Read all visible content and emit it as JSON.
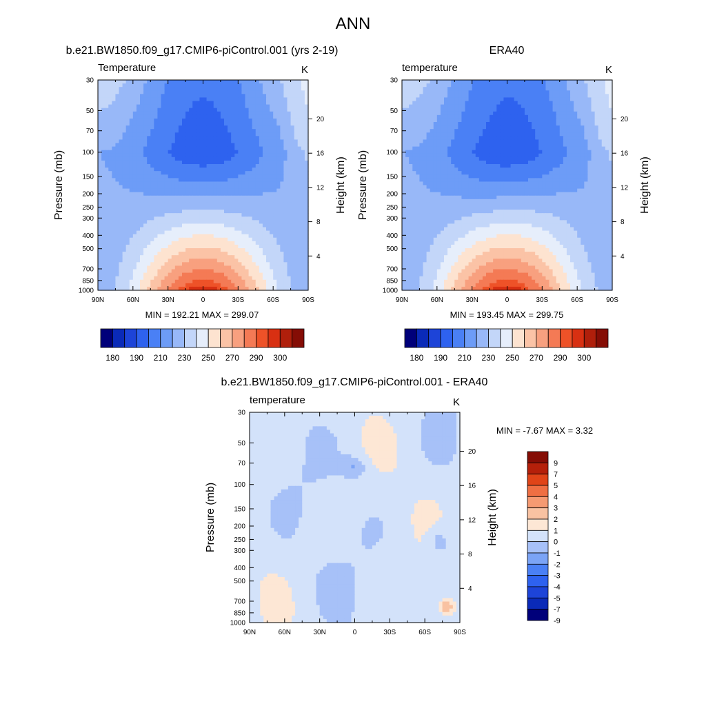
{
  "page": {
    "title": "ANN"
  },
  "colors": {
    "abs_levels": [
      "#00007a",
      "#0a2ab8",
      "#1d44d8",
      "#2e62ef",
      "#4a80f5",
      "#6d9cf7",
      "#98b8f8",
      "#c3d6f9",
      "#e6eefb",
      "#fde3d0",
      "#fbc3a6",
      "#f8a07f",
      "#f47a55",
      "#ee5228",
      "#d83012",
      "#b01f0b",
      "#850d05"
    ],
    "diff_levels": [
      "#00007a",
      "#0a2ab8",
      "#1d44d8",
      "#2e62ef",
      "#4a80f5",
      "#7ba4f6",
      "#a7c1f8",
      "#d3e2fa",
      "#fde7d5",
      "#f9c2a2",
      "#f59a72",
      "#ef6f43",
      "#e04418",
      "#b5200a",
      "#850d05"
    ]
  },
  "panels": {
    "model": {
      "heading": "b.e21.BW1850.f09_g17.CMIP6-piControl.001 (yrs 2-19)",
      "label_left": "Temperature",
      "label_right": "K",
      "stats": "MIN = 192.21  MAX = 299.07",
      "colorbar_ticks": [
        "180",
        "190",
        "210",
        "230",
        "250",
        "270",
        "290",
        "300"
      ]
    },
    "era40": {
      "heading": "ERA40",
      "label_left": "temperature",
      "label_right": "K",
      "stats": "MIN = 193.45  MAX = 299.75",
      "colorbar_ticks": [
        "180",
        "190",
        "210",
        "230",
        "250",
        "270",
        "290",
        "300"
      ]
    },
    "diff": {
      "heading": "b.e21.BW1850.f09_g17.CMIP6-piControl.001 - ERA40",
      "label_left": "temperature",
      "label_right": "K",
      "stats": "MIN =  -7.67  MAX =   3.32",
      "colorbar_ticks": [
        "9",
        "7",
        "5",
        "4",
        "3",
        "2",
        "1",
        "0",
        "-1",
        "-2",
        "-3",
        "-4",
        "-5",
        "-7",
        "-9"
      ]
    }
  },
  "chart_data": [
    {
      "type": "heatmap",
      "title": "b.e21.BW1850.f09_g17.CMIP6-piControl.001 (yrs 2-19)",
      "variable": "Temperature",
      "units": "K",
      "xlabel": "",
      "ylabel": "Pressure (mb)",
      "y2label": "Height (km)",
      "x_ticks": [
        "90N",
        "60N",
        "30N",
        "0",
        "30S",
        "60S",
        "90S"
      ],
      "y_ticks": [
        "30",
        "50",
        "70",
        "100",
        "150",
        "200",
        "250",
        "300",
        "400",
        "500",
        "700",
        "850",
        "1000"
      ],
      "y2_ticks": [
        "20",
        "16",
        "12",
        "8",
        "4"
      ],
      "y_scale": "log",
      "ylim": [
        1000,
        30
      ],
      "min": 192.21,
      "max": 299.07
    },
    {
      "type": "heatmap",
      "title": "ERA40",
      "variable": "temperature",
      "units": "K",
      "xlabel": "",
      "ylabel": "Pressure (mb)",
      "y2label": "Height (km)",
      "x_ticks": [
        "90N",
        "60N",
        "30N",
        "0",
        "30S",
        "60S",
        "90S"
      ],
      "y_ticks": [
        "30",
        "50",
        "70",
        "100",
        "150",
        "200",
        "250",
        "300",
        "400",
        "500",
        "700",
        "850",
        "1000"
      ],
      "y2_ticks": [
        "20",
        "16",
        "12",
        "8",
        "4"
      ],
      "y_scale": "log",
      "ylim": [
        1000,
        30
      ],
      "min": 193.45,
      "max": 299.75
    },
    {
      "type": "heatmap",
      "title": "b.e21.BW1850.f09_g17.CMIP6-piControl.001 - ERA40",
      "variable": "temperature",
      "units": "K",
      "xlabel": "",
      "ylabel": "Pressure (mb)",
      "y2label": "Height (km)",
      "x_ticks": [
        "90N",
        "60N",
        "30N",
        "0",
        "30S",
        "60S",
        "90S"
      ],
      "y_ticks": [
        "30",
        "50",
        "70",
        "100",
        "150",
        "200",
        "250",
        "300",
        "400",
        "500",
        "700",
        "850",
        "1000"
      ],
      "y2_ticks": [
        "20",
        "16",
        "12",
        "8",
        "4"
      ],
      "y_scale": "log",
      "ylim": [
        1000,
        30
      ],
      "min": -7.67,
      "max": 3.32
    }
  ]
}
